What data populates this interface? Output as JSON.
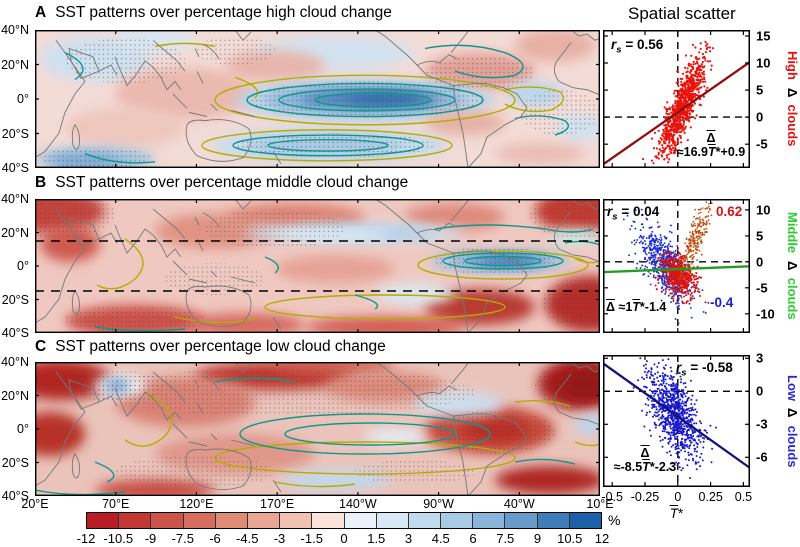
{
  "header": {
    "scatter_title": "Spatial scatter"
  },
  "panels": [
    {
      "letter": "A",
      "title": "SST patterns over percentage high cloud change",
      "rs": {
        "sym": "r",
        "sub": "s",
        "eq": "= 0.56"
      },
      "fit": {
        "delta": "Δ",
        "pre": "≈16.9",
        "t": "T",
        "star": "*",
        "post": "+0.9"
      },
      "side": {
        "word1": "High",
        "delta": "Δ",
        "word2": "clouds",
        "color": "#e01212"
      }
    },
    {
      "letter": "B",
      "title": "SST patterns over percentage middle cloud change",
      "rs": {
        "sym": "r",
        "sub": "s",
        "eq": "= 0.04"
      },
      "rs_pos": {
        "val": "0.62",
        "color": "#d41414"
      },
      "rs_neg": {
        "val": "-0.4",
        "color": "#1822cc"
      },
      "fit": {
        "delta": "Δ",
        "pre": " ≈1",
        "t": "T",
        "star": "*",
        "post": "-1.4"
      },
      "side": {
        "word1": "Middle",
        "delta": "Δ",
        "word2": "clouds",
        "color": "#2ecc2e"
      }
    },
    {
      "letter": "C",
      "title": "SST patterns over percentage low cloud change",
      "rs": {
        "sym": "r",
        "sub": "s",
        "eq": "= -0.58"
      },
      "fit": {
        "delta": "Δ",
        "pre": "≈-8.5",
        "t": "T",
        "star": "*",
        "post": "-2.3"
      },
      "side": {
        "word1": "Low",
        "delta": "Δ",
        "word2": "clouds",
        "color": "#2a2ad0"
      }
    }
  ],
  "map_axis": {
    "lat_ticks": [
      "40°N",
      "20°N",
      "0°",
      "20°S",
      "40°S"
    ],
    "lon_ticks": [
      "20°E",
      "70°E",
      "120°E",
      "170°E",
      "140°W",
      "90°W",
      "40°W",
      "10°E"
    ]
  },
  "scatter_axis": {
    "x_tick_labels": [
      "-0.5",
      "-0.25",
      "0",
      "0.25",
      "0.5"
    ],
    "x_label_t": "T",
    "x_label_star": "*"
  },
  "colorbar": {
    "unit": "%",
    "tick_labels": [
      "-12",
      "-10.5",
      "-9",
      "-7.5",
      "-6",
      "-4.5",
      "-3",
      "-1.5",
      "0",
      "1.5",
      "3",
      "4.5",
      "6",
      "7.5",
      "9",
      "10.5",
      "12"
    ],
    "cell_colors": [
      "#b81c25",
      "#c23934",
      "#cc5347",
      "#d66e5e",
      "#e08a78",
      "#e9a693",
      "#f1c2b2",
      "#fae3da",
      "#eaf1f8",
      "#d9e8f4",
      "#c1daee",
      "#a7cae5",
      "#89b5da",
      "#679bcb",
      "#3f7db9",
      "#1a61a8"
    ]
  },
  "chart_data": {
    "maps": [
      {
        "panel": "A",
        "type": "heatmap",
        "title": "SST patterns over percentage high cloud change",
        "lon_ticks": [
          "20°E",
          "70°E",
          "120°E",
          "170°E",
          "140°W",
          "90°W",
          "40°W",
          "10°E"
        ],
        "lat_ticks": [
          "40°N",
          "20°N",
          "0°",
          "20°S",
          "40°S"
        ],
        "scale_ticks": [
          -12,
          -10.5,
          -9,
          -7.5,
          -6,
          -4.5,
          -3,
          -1.5,
          0,
          1.5,
          3,
          4.5,
          6,
          7.5,
          9,
          10.5,
          12
        ],
        "unit": "%",
        "overlays": [
          "teal contours",
          "yellow contours",
          "stippling",
          "coastlines"
        ]
      },
      {
        "panel": "B",
        "type": "heatmap",
        "title": "SST patterns over percentage middle cloud change",
        "lon_ticks": [
          "20°E",
          "70°E",
          "120°E",
          "170°E",
          "140°W",
          "90°W",
          "40°W",
          "10°E"
        ],
        "lat_ticks": [
          "40°N",
          "20°N",
          "0°",
          "20°S",
          "40°S"
        ],
        "scale_ticks": [
          -12,
          -10.5,
          -9,
          -7.5,
          -6,
          -4.5,
          -3,
          -1.5,
          0,
          1.5,
          3,
          4.5,
          6,
          7.5,
          9,
          10.5,
          12
        ],
        "unit": "%",
        "overlays": [
          "teal contours",
          "yellow contours",
          "stippling",
          "coastlines",
          "dashed latitude lines ~15°N and ~15°S"
        ]
      },
      {
        "panel": "C",
        "type": "heatmap",
        "title": "SST patterns over percentage low cloud change",
        "lon_ticks": [
          "20°E",
          "70°E",
          "120°E",
          "170°E",
          "140°W",
          "90°W",
          "40°W",
          "10°E"
        ],
        "lat_ticks": [
          "40°N",
          "20°N",
          "0°",
          "20°S",
          "40°S"
        ],
        "scale_ticks": [
          -12,
          -10.5,
          -9,
          -7.5,
          -6,
          -4.5,
          -3,
          -1.5,
          0,
          1.5,
          3,
          4.5,
          6,
          7.5,
          9,
          10.5,
          12
        ],
        "unit": "%",
        "overlays": [
          "teal contours",
          "yellow contours",
          "stippling",
          "coastlines"
        ]
      }
    ],
    "scatters": [
      {
        "panel": "A",
        "type": "scatter",
        "x_label": "T*",
        "y_label": "Δ high clouds",
        "rs": 0.56,
        "fit": {
          "slope": 16.9,
          "intercept": 0.9
        },
        "line_color": "#8f0f0f",
        "xlim": [
          -0.57,
          0.55
        ],
        "ylim": [
          -9.4,
          16.1
        ],
        "x_ticks": [
          -0.5,
          -0.25,
          0,
          0.25,
          0.5
        ],
        "y_ticks": [
          15,
          10,
          5,
          0,
          -5
        ],
        "clouds": [
          {
            "n": 900,
            "x0": 0.03,
            "sx": 0.085,
            "slope": 45,
            "y0": 1.8,
            "sy": 2.6,
            "color": "#e8140c",
            "r": 1.1,
            "seed": 11
          }
        ]
      },
      {
        "panel": "B",
        "type": "scatter",
        "x_label": "T*",
        "y_label": "Δ middle clouds",
        "rs": 0.04,
        "rs_subsets": [
          {
            "value": 0.62,
            "color": "#d41414"
          },
          {
            "value": -0.4,
            "color": "#1822cc"
          }
        ],
        "fit": {
          "slope": 1,
          "intercept": -1.4
        },
        "line_color": "#1f9e1f",
        "xlim": [
          -0.57,
          0.55
        ],
        "ylim": [
          -13.7,
          12.1
        ],
        "x_ticks": [
          -0.5,
          -0.25,
          0,
          0.25,
          0.5
        ],
        "y_ticks": [
          10,
          5,
          0,
          -5,
          -10
        ],
        "clouds": [
          {
            "n": 650,
            "x0": -0.1,
            "sx": 0.1,
            "slope": -22,
            "y0": -0.5,
            "sy": 2.6,
            "color": "#2030cc",
            "r": 0.95,
            "seed": 22
          },
          {
            "n": 480,
            "x0": 0.0,
            "sx": 0.062,
            "slope": -10,
            "y0": -2.6,
            "sy": 1.9,
            "color": "#dc1410",
            "r": 1.05,
            "seed": 23
          },
          {
            "n": 240,
            "x0": 0.13,
            "sx": 0.06,
            "slope": 52,
            "y0": 4.2,
            "sy": 2.1,
            "color": "#bf5210",
            "r": 0.9,
            "seed": 24
          }
        ]
      },
      {
        "panel": "C",
        "type": "scatter",
        "x_label": "T*",
        "y_label": "Δ low clouds",
        "rs": -0.58,
        "fit": {
          "slope": -8.5,
          "intercept": -2.3
        },
        "line_color": "#12127a",
        "xlim": [
          -0.57,
          0.55
        ],
        "ylim": [
          -8.7,
          3.3
        ],
        "x_ticks": [
          -0.5,
          -0.25,
          0,
          0.25,
          0.5
        ],
        "y_ticks": [
          3,
          0,
          -3,
          -6
        ],
        "clouds": [
          {
            "n": 850,
            "x0": -0.03,
            "sx": 0.1,
            "slope": -11,
            "y0": -2.0,
            "sy": 1.7,
            "color": "#1818cc",
            "r": 1.0,
            "seed": 33
          }
        ]
      }
    ]
  }
}
